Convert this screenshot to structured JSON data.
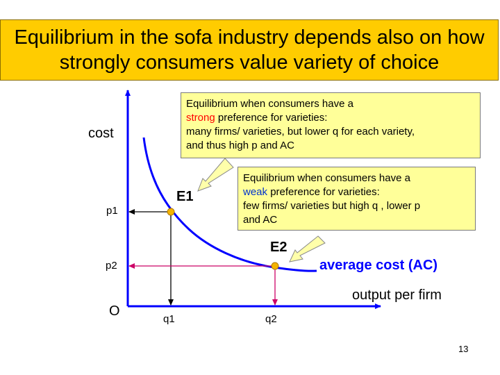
{
  "title": "Equilibrium in the sofa industry depends also on how strongly consumers value variety of choice",
  "callouts": {
    "strong": {
      "line1": "Equilibrium when consumers have a",
      "keyword": "strong",
      "line2_rest": " preference for varieties:",
      "line3": "many firms/ varieties, but lower q for each variety,",
      "line4": "and thus high p and AC"
    },
    "weak": {
      "line1": "Equilibrium when consumers have a",
      "keyword": "weak",
      "line2_rest": " preference for varieties:",
      "line3": "few firms/ varieties but high q , lower p",
      "line4": "and  AC"
    }
  },
  "axes": {
    "y_label": "cost",
    "x_label": "output per firm",
    "origin": "O"
  },
  "curve_label": "average cost (AC)",
  "points": {
    "e1": "E1",
    "e2": "E2"
  },
  "ticks": {
    "p1": "p1",
    "p2": "p2",
    "q1": "q1",
    "q2": "q2"
  },
  "page_number": "13",
  "colors": {
    "title_bg": "#ffcc00",
    "callout_bg": "#ffff99",
    "axis": "#0000ff",
    "curve": "#0000ff",
    "point": "#f4b400",
    "p2_guide": "#cc0066",
    "strong_keyword": "#ff0000",
    "weak_keyword": "#0033cc"
  }
}
